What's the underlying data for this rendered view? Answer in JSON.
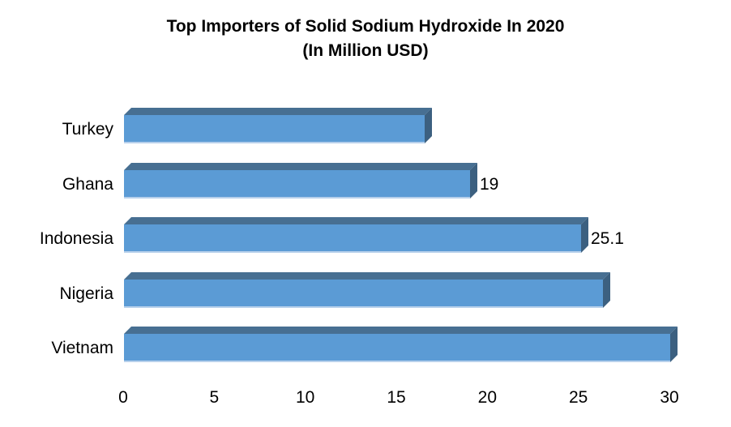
{
  "title": {
    "line1": "Top Importers of Solid Sodium Hydroxide In 2020",
    "line2": "(In Million USD)"
  },
  "chart_data": {
    "type": "bar",
    "orientation": "horizontal",
    "title": "Top Importers of Solid Sodium Hydroxide In 2020 (In Million USD)",
    "categories": [
      "Turkey",
      "Ghana",
      "Indonesia",
      "Nigeria",
      "Vietnam"
    ],
    "values": [
      16.5,
      19,
      25.1,
      26.3,
      30
    ],
    "data_labels": [
      "",
      "19",
      "25.1",
      "",
      ""
    ],
    "xlabel": "",
    "ylabel": "",
    "xlim": [
      0,
      30
    ],
    "xticks": [
      0,
      5,
      10,
      15,
      20,
      25,
      30
    ],
    "grid": false,
    "legend": false,
    "style": "3d-cylinder-free 3d bar",
    "colors": {
      "bar_front": "#5B9BD5",
      "bar_top": "#44688F",
      "bar_side": "#36597E",
      "bar_bottom_edge": "#B7D0EB",
      "text": "#000000",
      "background": "#FFFFFF"
    }
  }
}
